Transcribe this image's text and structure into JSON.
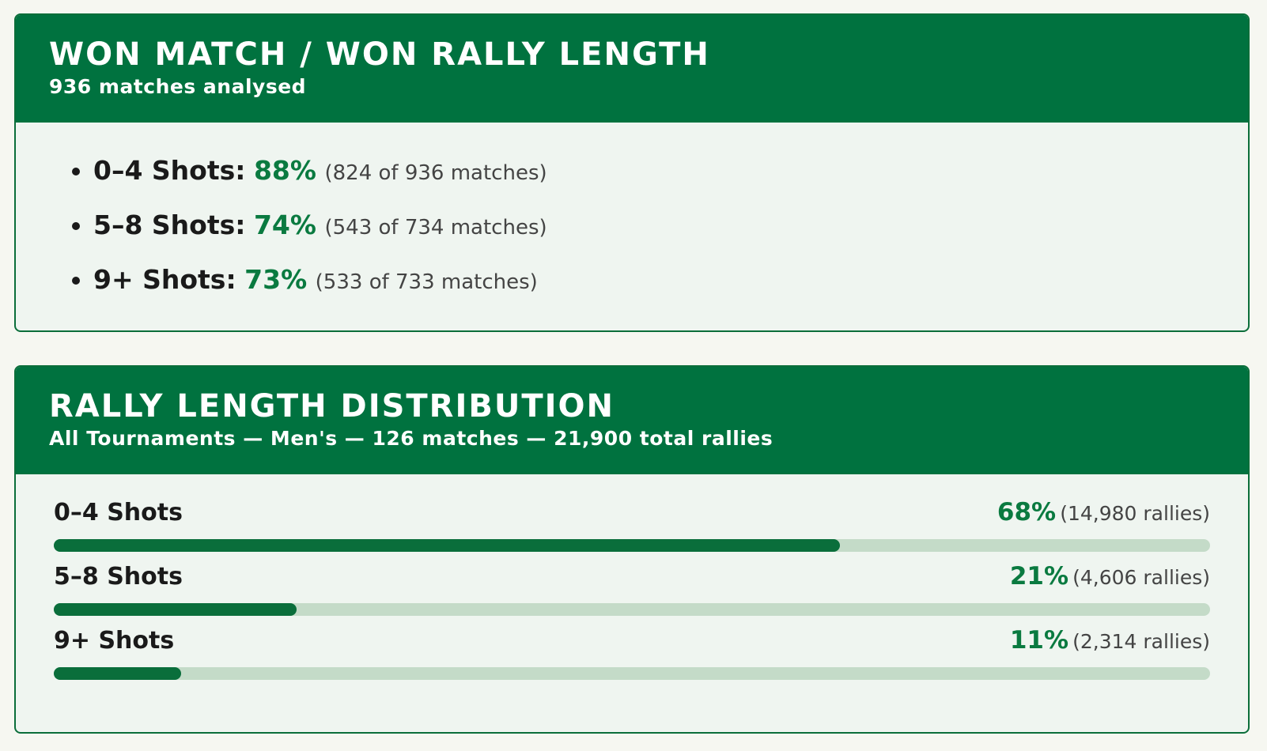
{
  "won_match": {
    "title": "WON MATCH / WON RALLY LENGTH",
    "subtitle": "936 matches analysed",
    "items": [
      {
        "label": "0–4 Shots:",
        "percent": "88%",
        "detail": "(824 of 936 matches)"
      },
      {
        "label": "5–8 Shots:",
        "percent": "74%",
        "detail": "(543 of 734 matches)"
      },
      {
        "label": "9+ Shots:",
        "percent": "73%",
        "detail": "(533 of 733 matches)"
      }
    ]
  },
  "distribution": {
    "title": "RALLY LENGTH DISTRIBUTION",
    "subtitle": "All Tournaments — Men's — 126 matches — 21,900 total rallies",
    "scale_max": 100,
    "rows": [
      {
        "label": "0–4 Shots",
        "value": 68,
        "value_label": "68%",
        "detail": "(14,980 rallies)"
      },
      {
        "label": "5–8 Shots",
        "value": 21,
        "value_label": "21%",
        "detail": "(4,606 rallies)"
      },
      {
        "label": "9+ Shots",
        "value": 11,
        "value_label": "11%",
        "detail": "(2,314 rallies)"
      }
    ]
  }
}
